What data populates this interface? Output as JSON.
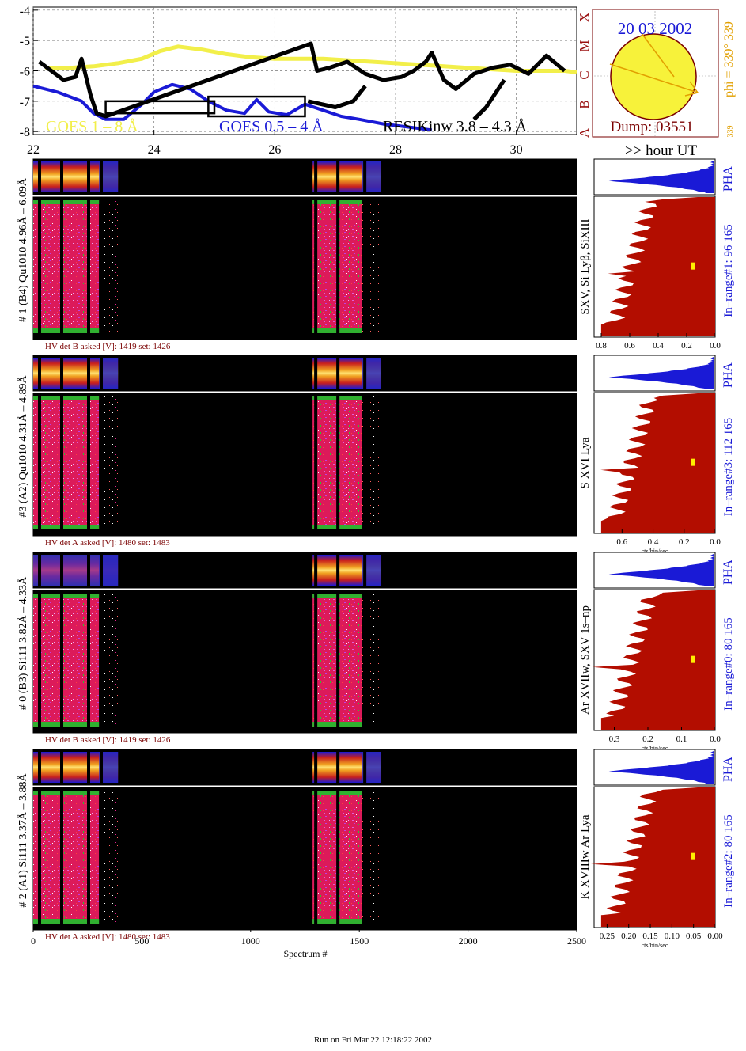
{
  "colors": {
    "goes_long": "#f2ef4a",
    "goes_short": "#1a1ad6",
    "resik": "#000000",
    "hist_fill": "#b30d00",
    "pha_fill": "#1a1ad6",
    "sun_fill": "#f7f23a",
    "sun_outline": "#7a0000",
    "date_text": "#1a1ad6",
    "dump_text": "#7a0000",
    "phi_text": "#e2a000",
    "class_text": "#9a1010",
    "range_text": "#1a1ad6",
    "hv_text": "#7a0000"
  },
  "chart_data": [
    {
      "type": "line",
      "name": "goes-lightcurve",
      "x_ticks": [
        "22",
        "24",
        "26",
        "28",
        "30"
      ],
      "x_tick_values": [
        22,
        24,
        26,
        28,
        30
      ],
      "xlim": [
        22,
        31
      ],
      "y_ticks": [
        "-4",
        "-5",
        "-6",
        "-7",
        "-8"
      ],
      "y_tick_values": [
        -4,
        -5,
        -6,
        -7,
        -8
      ],
      "ylim": [
        -8.1,
        -3.9
      ],
      "grid": true,
      "legend": [
        "GOES 1 – 8 Å",
        "GOES 0.5 – 4 Å",
        "RESIKinw 3.8 – 4.3 Å"
      ],
      "x_unit_label": ">> hour UT",
      "series": [
        {
          "name": "GOES 1 – 8 Å",
          "color_key": "goes_long",
          "x": [
            22.2,
            22.6,
            23.0,
            23.4,
            23.8,
            24.1,
            24.4,
            24.8,
            25.2,
            25.6,
            26.0,
            26.4,
            26.8,
            27.2,
            27.6,
            28.0,
            28.4,
            28.8,
            29.2,
            29.6,
            30.0,
            30.4,
            30.8,
            31.0
          ],
          "y": [
            -5.9,
            -5.9,
            -5.85,
            -5.75,
            -5.6,
            -5.35,
            -5.2,
            -5.3,
            -5.45,
            -5.55,
            -5.6,
            -5.6,
            -5.6,
            -5.65,
            -5.7,
            -5.75,
            -5.8,
            -5.85,
            -5.9,
            -5.95,
            -6.0,
            -6.0,
            -6.0,
            -6.05
          ]
        },
        {
          "name": "GOES 0.5 – 4 Å",
          "color_key": "goes_short",
          "x": [
            22.0,
            22.4,
            22.8,
            23.0,
            23.2,
            23.5,
            23.8,
            24.0,
            24.3,
            24.6,
            24.9,
            25.2,
            25.5,
            25.7,
            25.9,
            26.2,
            26.5,
            26.8,
            27.1,
            27.4,
            27.8,
            28.2,
            28.6
          ],
          "y": [
            -6.5,
            -6.7,
            -7.0,
            -7.4,
            -7.6,
            -7.6,
            -7.1,
            -6.7,
            -6.45,
            -6.6,
            -7.0,
            -7.3,
            -7.4,
            -6.95,
            -7.35,
            -7.45,
            -7.1,
            -7.3,
            -7.5,
            -7.6,
            -7.75,
            -7.85,
            -7.95
          ]
        },
        {
          "name": "RESIKinw 3.8 – 4.3 Å",
          "color_key": "resik",
          "x": [
            22.1,
            22.3,
            22.5,
            22.7,
            22.8,
            22.95,
            23.05,
            23.2,
            26.6,
            26.7,
            26.9,
            27.2,
            27.5,
            27.8,
            28.1,
            28.3,
            28.5,
            28.6,
            28.8,
            29.0,
            29.3,
            29.6,
            29.9,
            30.2,
            30.5,
            30.8
          ],
          "y": [
            -5.7,
            -6.0,
            -6.3,
            -6.2,
            -5.6,
            -6.8,
            -7.4,
            -7.5,
            -5.1,
            -6.0,
            -5.9,
            -5.7,
            -6.1,
            -6.3,
            -6.2,
            -6.0,
            -5.7,
            -5.4,
            -6.3,
            -6.6,
            -6.1,
            -5.9,
            -5.8,
            -6.1,
            -5.5,
            -6.0
          ]
        }
      ],
      "resik_drop_segments": [
        [
          22.95,
          23.25
        ],
        [
          26.55,
          26.65
        ]
      ],
      "resik_lower_episodes": [
        {
          "x": [
            26.55,
            27.0,
            27.3,
            27.5
          ],
          "y": [
            -7.0,
            -7.2,
            -7.0,
            -6.5
          ]
        },
        {
          "x": [
            29.3,
            29.5,
            29.8
          ],
          "y": [
            -7.6,
            -7.2,
            -6.3
          ]
        }
      ],
      "boxes": [
        {
          "x0": 23.2,
          "x1": 25.0,
          "y0": -7.4,
          "y1": -7.0
        },
        {
          "x0": 24.9,
          "x1": 26.5,
          "y0": -7.5,
          "y1": -6.85
        }
      ]
    },
    {
      "type": "other",
      "name": "sun-dial",
      "date": "20 03 2002",
      "dump": "Dump: 03551",
      "phi": "phi = 339° 339",
      "phi_small": "339",
      "classes": [
        "X",
        "M",
        "C",
        "B",
        "A"
      ]
    },
    {
      "type": "heatmap",
      "name": "spectrogram-panels",
      "x_ticks": [
        "0",
        "500",
        "1000",
        "1500",
        "2000",
        "2500"
      ],
      "x_tick_values": [
        0,
        500,
        1000,
        1500,
        2000,
        2500
      ],
      "xlim": [
        0,
        2500
      ],
      "xlabel": "Spectrum #",
      "active_blocks": [
        [
          0,
          390
        ],
        [
          1285,
          1600
        ]
      ],
      "panels": [
        {
          "label": "# 1 (B4) Qu1010  4.96Å – 6.09Å",
          "hv": "HV det B asked [V]:  1419 set:  1426",
          "lines": "SXV, Si Lyβ, SiXIII",
          "range": "In–range#1:   96 165",
          "hist_ticks": [
            "0.8",
            "0.6",
            "0.4",
            "0.2",
            "0.0"
          ],
          "hist_tick_values": [
            0.8,
            0.6,
            0.4,
            0.2,
            0.0
          ],
          "hist_xlim": [
            0.85,
            0.0
          ],
          "hist_xlabel": ""
        },
        {
          "label": "#3 (A2) Qu1010  4.31Å – 4.89Å",
          "hv": "HV det A asked [V]:  1480 set:  1483",
          "lines": "S XVI Lya",
          "range": "In–range#3:   112 165",
          "hist_ticks": [
            "0.6",
            "0.4",
            "0.2",
            "0.0"
          ],
          "hist_tick_values": [
            0.6,
            0.4,
            0.2,
            0.0
          ],
          "hist_xlim": [
            0.78,
            0.0
          ],
          "hist_xlabel": "cts/bin/sec"
        },
        {
          "label": "# 0 (B3) Si111  3.82Å – 4.33Å",
          "hv": "HV det B asked [V]:  1419 set:  1426",
          "lines": "Ar XVIIw,  SXV 1s–np",
          "range": "In–range#0:   80 165",
          "hist_ticks": [
            "0.3",
            "0.2",
            "0.1",
            "0.0"
          ],
          "hist_tick_values": [
            0.3,
            0.2,
            0.1,
            0.0
          ],
          "hist_xlim": [
            0.36,
            0.0
          ],
          "hist_xlabel": "cts/bin/sec"
        },
        {
          "label": "# 2 (A1) Si111  3.37Å – 3.88Å",
          "hv": "HV det A asked [V]:  1480 set:  1483",
          "lines": "K XVIIIw  Ar Lya",
          "range": "In–range#2:   80 165",
          "hist_ticks": [
            "0.25",
            "0.20",
            "0.15",
            "0.10",
            "0.05",
            "0.00"
          ],
          "hist_tick_values": [
            0.25,
            0.2,
            0.15,
            0.1,
            0.05,
            0.0
          ],
          "hist_xlim": [
            0.28,
            0.0
          ],
          "hist_xlabel": "cts/bin/sec"
        }
      ],
      "pha_label": "PHA"
    }
  ],
  "footer": "Run on Fri Mar 22 12:18:22 2002"
}
